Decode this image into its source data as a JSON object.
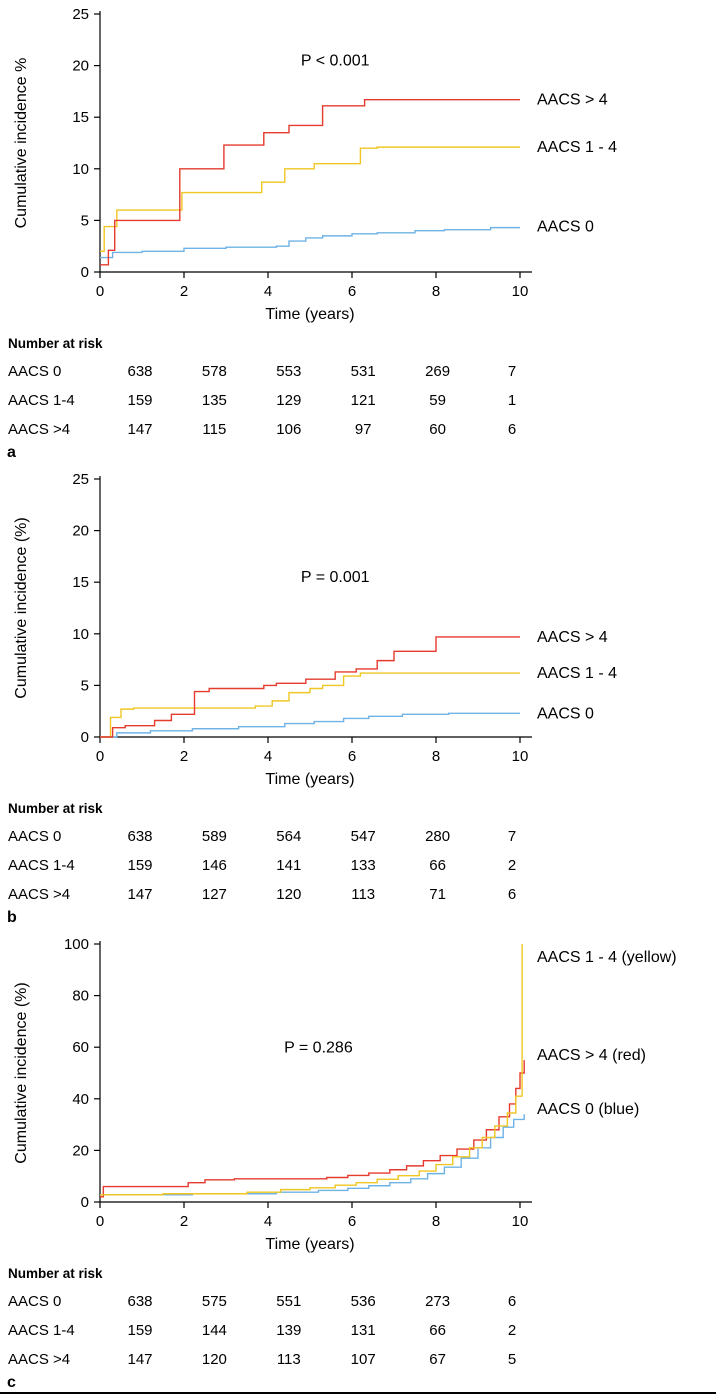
{
  "chart_data": [
    {
      "type": "line",
      "chart_kind": "cumulative-incidence-step",
      "panel_label": "a",
      "xlabel": "Time (years)",
      "ylabel": "Cumulative incidence %",
      "p_value": "P < 0.001",
      "p_value_pos": {
        "x": 5.6,
        "y": 20
      },
      "xlim": [
        0,
        10
      ],
      "ylim": [
        0,
        25
      ],
      "xticks": [
        0,
        2,
        4,
        6,
        8,
        10
      ],
      "yticks": [
        0,
        5,
        10,
        15,
        20,
        25
      ],
      "grid": false,
      "legend_position": "right-outside",
      "series": [
        {
          "name": "AACS > 4",
          "color": "#e63a2e",
          "label_y": 16.7,
          "steps": [
            [
              0,
              0.7
            ],
            [
              0.2,
              2.1
            ],
            [
              0.35,
              5.0
            ],
            [
              1.9,
              10.0
            ],
            [
              2.95,
              12.3
            ],
            [
              3.9,
              13.5
            ],
            [
              4.5,
              14.2
            ],
            [
              5.3,
              16.1
            ],
            [
              6.3,
              16.7
            ],
            [
              10,
              16.7
            ]
          ]
        },
        {
          "name": "AACS 1 - 4",
          "color": "#f0c622",
          "label_y": 12.1,
          "steps": [
            [
              0,
              2.0
            ],
            [
              0.1,
              4.4
            ],
            [
              0.4,
              6.0
            ],
            [
              1.95,
              7.7
            ],
            [
              3.85,
              8.7
            ],
            [
              4.4,
              10.0
            ],
            [
              5.1,
              10.5
            ],
            [
              6.2,
              12.0
            ],
            [
              6.6,
              12.1
            ],
            [
              10,
              12.1
            ]
          ]
        },
        {
          "name": "AACS 0",
          "color": "#6fb3e6",
          "label_y": 4.4,
          "steps": [
            [
              0,
              1.4
            ],
            [
              0.3,
              1.9
            ],
            [
              1.0,
              2.0
            ],
            [
              2.0,
              2.3
            ],
            [
              3.0,
              2.4
            ],
            [
              4.2,
              2.5
            ],
            [
              4.5,
              3.0
            ],
            [
              4.9,
              3.3
            ],
            [
              5.3,
              3.5
            ],
            [
              6.0,
              3.7
            ],
            [
              6.6,
              3.8
            ],
            [
              7.5,
              4.0
            ],
            [
              8.2,
              4.1
            ],
            [
              9.3,
              4.3
            ],
            [
              10,
              4.3
            ]
          ]
        }
      ],
      "risk_table": {
        "title": "Number at risk",
        "time_points": [
          0,
          2,
          4,
          6,
          8,
          10
        ],
        "rows": [
          {
            "label": "AACS 0",
            "values": [
              "638",
              "578",
              "553",
              "531",
              "269",
              "7"
            ]
          },
          {
            "label": "AACS 1-4",
            "values": [
              "159",
              "135",
              "129",
              "121",
              "59",
              "1"
            ]
          },
          {
            "label": "AACS >4",
            "values": [
              "147",
              "115",
              "106",
              "97",
              "60",
              "6"
            ]
          }
        ]
      }
    },
    {
      "type": "line",
      "chart_kind": "cumulative-incidence-step",
      "panel_label": "b",
      "xlabel": "Time (years)",
      "ylabel": "Cumulative incidence (%)",
      "p_value": "P = 0.001",
      "p_value_pos": {
        "x": 5.6,
        "y": 15
      },
      "xlim": [
        0,
        10
      ],
      "ylim": [
        0,
        25
      ],
      "xticks": [
        0,
        2,
        4,
        6,
        8,
        10
      ],
      "yticks": [
        0,
        5,
        10,
        15,
        20,
        25
      ],
      "grid": false,
      "legend_position": "right-outside",
      "series": [
        {
          "name": "AACS > 4",
          "color": "#e63a2e",
          "label_y": 9.7,
          "steps": [
            [
              0,
              0
            ],
            [
              0.3,
              0.9
            ],
            [
              0.6,
              1.1
            ],
            [
              1.3,
              1.6
            ],
            [
              1.7,
              2.2
            ],
            [
              2.25,
              4.4
            ],
            [
              2.6,
              4.7
            ],
            [
              3.9,
              5.0
            ],
            [
              4.2,
              5.2
            ],
            [
              4.9,
              5.6
            ],
            [
              5.6,
              6.3
            ],
            [
              6.1,
              6.6
            ],
            [
              6.6,
              7.4
            ],
            [
              7.0,
              8.3
            ],
            [
              8.0,
              9.7
            ],
            [
              10,
              9.7
            ]
          ]
        },
        {
          "name": "AACS 1 - 4",
          "color": "#f0c622",
          "label_y": 6.2,
          "steps": [
            [
              0,
              0
            ],
            [
              0.25,
              1.9
            ],
            [
              0.5,
              2.7
            ],
            [
              0.8,
              2.8
            ],
            [
              3.7,
              3.0
            ],
            [
              4.1,
              3.5
            ],
            [
              4.5,
              4.3
            ],
            [
              5.0,
              4.7
            ],
            [
              5.3,
              5.0
            ],
            [
              5.8,
              5.9
            ],
            [
              6.2,
              6.2
            ],
            [
              10,
              6.2
            ]
          ]
        },
        {
          "name": "AACS 0",
          "color": "#6fb3e6",
          "label_y": 2.3,
          "steps": [
            [
              0,
              0
            ],
            [
              0.4,
              0.4
            ],
            [
              1.2,
              0.6
            ],
            [
              2.2,
              0.8
            ],
            [
              3.3,
              1.0
            ],
            [
              4.4,
              1.3
            ],
            [
              5.1,
              1.5
            ],
            [
              5.8,
              1.8
            ],
            [
              6.4,
              2.0
            ],
            [
              7.2,
              2.2
            ],
            [
              8.3,
              2.3
            ],
            [
              10,
              2.3
            ]
          ]
        }
      ],
      "risk_table": {
        "title": "Number at risk",
        "time_points": [
          0,
          2,
          4,
          6,
          8,
          10
        ],
        "rows": [
          {
            "label": "AACS 0",
            "values": [
              "638",
              "589",
              "564",
              "547",
              "280",
              "7"
            ]
          },
          {
            "label": "AACS 1-4",
            "values": [
              "159",
              "146",
              "141",
              "133",
              "66",
              "2"
            ]
          },
          {
            "label": "AACS >4",
            "values": [
              "147",
              "127",
              "120",
              "113",
              "71",
              "6"
            ]
          }
        ]
      }
    },
    {
      "type": "line",
      "chart_kind": "cumulative-incidence-step",
      "panel_label": "c",
      "xlabel": "Time (years)",
      "ylabel": "Cumulative incidence (%)",
      "p_value": "P = 0.286",
      "p_value_pos": {
        "x": 5.2,
        "y": 58
      },
      "xlim": [
        0,
        10
      ],
      "ylim": [
        0,
        100
      ],
      "xticks": [
        0,
        2,
        4,
        6,
        8,
        10
      ],
      "yticks": [
        0,
        20,
        40,
        60,
        80,
        100
      ],
      "grid": false,
      "legend_position": "right-outside",
      "series": [
        {
          "name": "AACS 1 - 4 (yellow)",
          "color": "#f0c622",
          "label_y": 95,
          "steps": [
            [
              0,
              2.8
            ],
            [
              1.5,
              3.2
            ],
            [
              3.5,
              3.8
            ],
            [
              4.3,
              4.8
            ],
            [
              5.0,
              5.5
            ],
            [
              5.6,
              6.5
            ],
            [
              6.1,
              7.5
            ],
            [
              6.6,
              8.8
            ],
            [
              7.1,
              10.2
            ],
            [
              7.6,
              12.0
            ],
            [
              8.0,
              14.5
            ],
            [
              8.4,
              17.5
            ],
            [
              8.8,
              21.0
            ],
            [
              9.1,
              25.0
            ],
            [
              9.4,
              29.5
            ],
            [
              9.7,
              34.5
            ],
            [
              9.9,
              41.0
            ],
            [
              10.05,
              100.0
            ]
          ]
        },
        {
          "name": "AACS > 4 (red)",
          "color": "#e63a2e",
          "label_y": 57,
          "steps": [
            [
              0,
              2.0
            ],
            [
              0.08,
              6.0
            ],
            [
              2.1,
              7.5
            ],
            [
              2.5,
              8.6
            ],
            [
              3.2,
              9.0
            ],
            [
              5.4,
              9.5
            ],
            [
              5.9,
              10.3
            ],
            [
              6.4,
              11.2
            ],
            [
              6.9,
              12.5
            ],
            [
              7.3,
              14.0
            ],
            [
              7.7,
              16.0
            ],
            [
              8.1,
              18.0
            ],
            [
              8.5,
              20.5
            ],
            [
              8.9,
              24.0
            ],
            [
              9.2,
              28.0
            ],
            [
              9.5,
              33.0
            ],
            [
              9.75,
              38.0
            ],
            [
              9.9,
              44.0
            ],
            [
              10.0,
              50.0
            ],
            [
              10.1,
              55.0
            ]
          ]
        },
        {
          "name": "AACS 0 (blue)",
          "color": "#6fb3e6",
          "label_y": 36,
          "steps": [
            [
              0,
              2.8
            ],
            [
              2.2,
              3.2
            ],
            [
              4.2,
              3.8
            ],
            [
              5.2,
              4.5
            ],
            [
              5.9,
              5.3
            ],
            [
              6.4,
              6.3
            ],
            [
              6.9,
              7.5
            ],
            [
              7.4,
              9.0
            ],
            [
              7.8,
              11.0
            ],
            [
              8.2,
              13.5
            ],
            [
              8.6,
              17.0
            ],
            [
              9.0,
              21.0
            ],
            [
              9.3,
              25.0
            ],
            [
              9.6,
              29.0
            ],
            [
              9.85,
              32.0
            ],
            [
              10.1,
              34.0
            ]
          ]
        }
      ],
      "risk_table": {
        "title": "Number at risk",
        "time_points": [
          0,
          2,
          4,
          6,
          8,
          10
        ],
        "rows": [
          {
            "label": "AACS 0",
            "values": [
              "638",
              "575",
              "551",
              "536",
              "273",
              "6"
            ]
          },
          {
            "label": "AACS 1-4",
            "values": [
              "159",
              "144",
              "139",
              "131",
              "66",
              "2"
            ]
          },
          {
            "label": "AACS >4",
            "values": [
              "147",
              "120",
              "113",
              "107",
              "67",
              "5"
            ]
          }
        ]
      }
    }
  ]
}
